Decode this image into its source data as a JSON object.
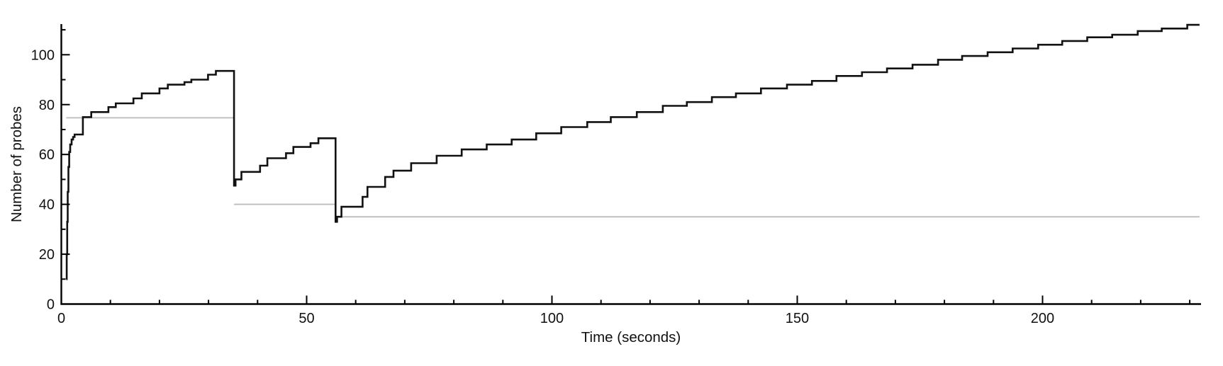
{
  "figure": {
    "background_color": "#ffffff",
    "axis_color": "#000000",
    "text_color": "#111111"
  },
  "chart_data": {
    "type": "line",
    "subtype": "step-after",
    "title": "",
    "xlabel": "Time (seconds)",
    "ylabel": "Number of probes",
    "xlim": [
      0,
      232.3
    ],
    "ylim": [
      0,
      112.3
    ],
    "x_major_ticks": [
      0,
      50,
      100,
      150,
      200
    ],
    "x_minor_tick_interval": 10,
    "y_major_ticks": [
      0,
      20,
      40,
      60,
      80,
      100
    ],
    "y_minor_tick_interval": 10,
    "grid": false,
    "legend": "none",
    "tick_direction": "in",
    "series": [
      {
        "name": "reference-level",
        "color": "#c0c0c0",
        "style": "horizontal-segments",
        "stroke_width": 2,
        "segments": [
          {
            "y": 74.7,
            "x0": 1.0,
            "x1": 35.2
          },
          {
            "y": 40.0,
            "x0": 35.2,
            "x1": 55.9
          },
          {
            "y": 35.0,
            "x0": 55.9,
            "x1": 232.0
          }
        ]
      },
      {
        "name": "number-of-probes",
        "color": "#111111",
        "style": "step-after",
        "stroke_width": 2.6,
        "points": [
          [
            1.0,
            10
          ],
          [
            1.1,
            20
          ],
          [
            1.2,
            33
          ],
          [
            1.3,
            45
          ],
          [
            1.45,
            55
          ],
          [
            1.6,
            61
          ],
          [
            1.8,
            64
          ],
          [
            2.1,
            66
          ],
          [
            2.4,
            67
          ],
          [
            2.7,
            68
          ],
          [
            4.4,
            75
          ],
          [
            6.1,
            77
          ],
          [
            9.6,
            79
          ],
          [
            11.1,
            80.5
          ],
          [
            14.7,
            82.5
          ],
          [
            16.4,
            84.5
          ],
          [
            20.0,
            86.5
          ],
          [
            21.7,
            88
          ],
          [
            25.1,
            89
          ],
          [
            26.5,
            90
          ],
          [
            29.9,
            92
          ],
          [
            31.5,
            93.5
          ],
          [
            35.2,
            47.5
          ],
          [
            35.5,
            50
          ],
          [
            36.7,
            53
          ],
          [
            40.5,
            55.5
          ],
          [
            42.0,
            58.5
          ],
          [
            45.8,
            60.5
          ],
          [
            47.3,
            63
          ],
          [
            50.8,
            64.5
          ],
          [
            52.4,
            66.5
          ],
          [
            55.9,
            33
          ],
          [
            56.2,
            35
          ],
          [
            57.1,
            39
          ],
          [
            61.4,
            43
          ],
          [
            62.4,
            47
          ],
          [
            66.0,
            51
          ],
          [
            67.7,
            53.5
          ],
          [
            71.3,
            56.5
          ],
          [
            76.5,
            59.5
          ],
          [
            81.6,
            62
          ],
          [
            86.7,
            64
          ],
          [
            91.8,
            66
          ],
          [
            96.8,
            68.5
          ],
          [
            101.9,
            71
          ],
          [
            107.2,
            73
          ],
          [
            112.0,
            75
          ],
          [
            117.3,
            77
          ],
          [
            122.6,
            79.5
          ],
          [
            127.5,
            81
          ],
          [
            132.6,
            83
          ],
          [
            137.5,
            84.5
          ],
          [
            142.6,
            86.5
          ],
          [
            147.9,
            88
          ],
          [
            153.0,
            89.5
          ],
          [
            158.0,
            91.5
          ],
          [
            163.2,
            93
          ],
          [
            168.3,
            94.5
          ],
          [
            173.5,
            96
          ],
          [
            178.7,
            98
          ],
          [
            183.6,
            99.5
          ],
          [
            188.8,
            101
          ],
          [
            193.9,
            102.5
          ],
          [
            199.1,
            104
          ],
          [
            204.0,
            105.5
          ],
          [
            209.1,
            107
          ],
          [
            214.2,
            108
          ],
          [
            219.4,
            109.5
          ],
          [
            224.3,
            110.5
          ],
          [
            229.5,
            112
          ],
          [
            232.0,
            112
          ]
        ]
      }
    ]
  }
}
